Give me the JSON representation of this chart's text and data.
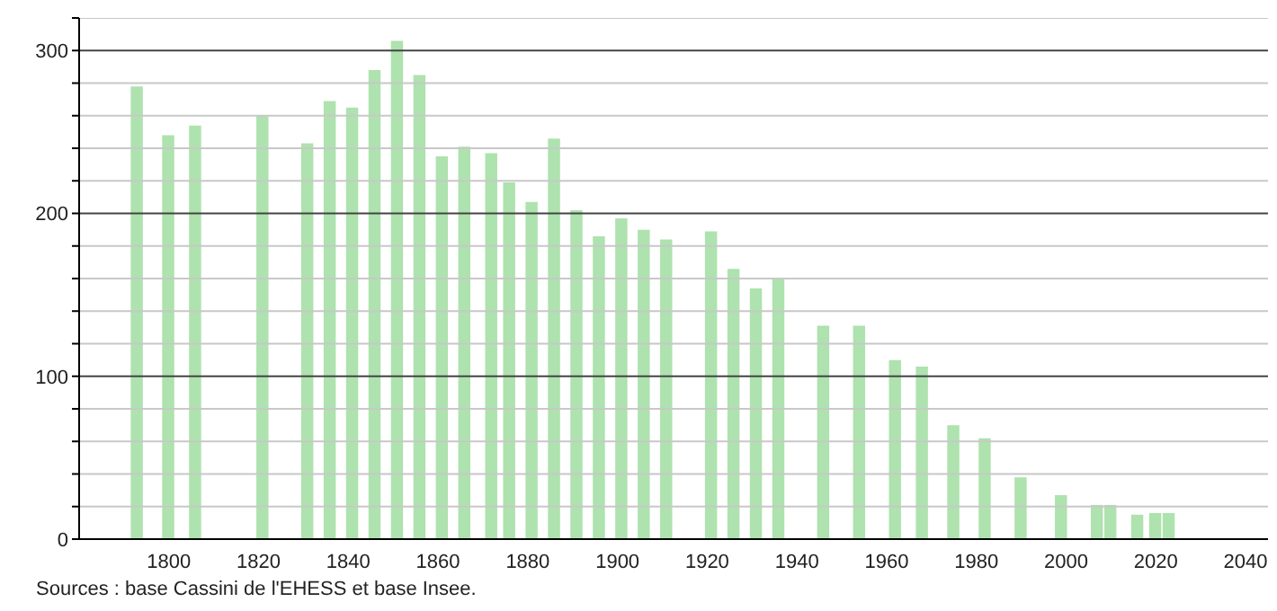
{
  "chart_data": {
    "type": "bar",
    "x": [
      1793,
      1800,
      1806,
      1821,
      1831,
      1836,
      1841,
      1846,
      1851,
      1856,
      1861,
      1866,
      1872,
      1876,
      1881,
      1886,
      1891,
      1896,
      1901,
      1906,
      1911,
      1921,
      1926,
      1931,
      1936,
      1946,
      1954,
      1962,
      1968,
      1975,
      1982,
      1990,
      1999,
      2007,
      2010,
      2016,
      2020,
      2023
    ],
    "values": [
      278,
      248,
      254,
      260,
      243,
      269,
      265,
      288,
      306,
      285,
      235,
      241,
      237,
      219,
      207,
      246,
      202,
      186,
      197,
      190,
      184,
      189,
      166,
      154,
      160,
      131,
      131,
      110,
      106,
      70,
      62,
      38,
      27,
      21,
      21,
      15,
      16,
      16
    ],
    "color": "#aee2ae",
    "xlim": [
      1780,
      2045
    ],
    "xticks": [
      1800,
      1820,
      1840,
      1860,
      1880,
      1900,
      1920,
      1940,
      1960,
      1980,
      2000,
      2020,
      2040
    ],
    "ylim": [
      0,
      320
    ],
    "yticks": [
      0,
      {
        "value": 20,
        "label": null
      },
      {
        "value": 40,
        "label": null
      },
      {
        "value": 60,
        "label": null
      },
      {
        "value": 80,
        "label": null
      },
      100,
      {
        "value": 120,
        "label": null
      },
      {
        "value": 140,
        "label": null
      },
      {
        "value": 160,
        "label": null
      },
      {
        "value": 180,
        "label": null
      },
      200,
      {
        "value": 220,
        "label": null
      },
      {
        "value": 240,
        "label": null
      },
      {
        "value": 260,
        "label": null
      },
      {
        "value": 280,
        "label": null
      },
      300,
      {
        "value": 320,
        "label": null
      }
    ],
    "grid": "y",
    "annotations": [
      "Sources : base Cassini de l'EHESS et base Insee."
    ]
  }
}
